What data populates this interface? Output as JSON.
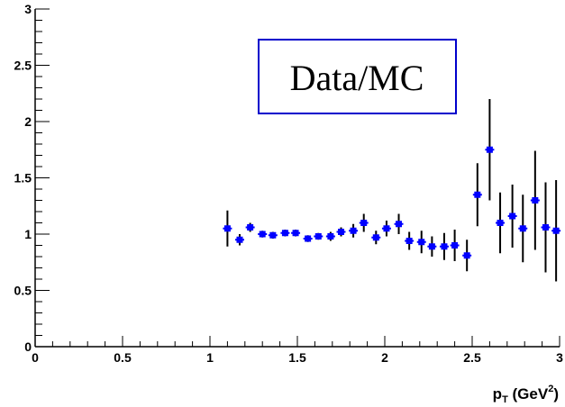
{
  "chart_data": {
    "type": "scatter",
    "title": "",
    "legend_box_text": "Data/MC",
    "xlabel": {
      "main": "p",
      "subscript": "T",
      "rest": " (GeV",
      "superscript": "2",
      "close": ")"
    },
    "ylabel": "",
    "xlim": [
      0,
      3
    ],
    "ylim": [
      0,
      3
    ],
    "x_ticks": [
      {
        "value": 0,
        "label": "0"
      },
      {
        "value": 0.5,
        "label": "0.5"
      },
      {
        "value": 1,
        "label": "1"
      },
      {
        "value": 1.5,
        "label": "1.5"
      },
      {
        "value": 2,
        "label": "2"
      },
      {
        "value": 2.5,
        "label": "2.5"
      },
      {
        "value": 3,
        "label": "3"
      }
    ],
    "y_ticks": [
      {
        "value": 0,
        "label": "0"
      },
      {
        "value": 0.5,
        "label": "0.5"
      },
      {
        "value": 1,
        "label": "1"
      },
      {
        "value": 1.5,
        "label": "1.5"
      },
      {
        "value": 2,
        "label": "2"
      },
      {
        "value": 2.5,
        "label": "2.5"
      },
      {
        "value": 3,
        "label": "3"
      }
    ],
    "grid": false,
    "marker_color": "#0000ff",
    "error_bar_color": "#000000",
    "series": [
      {
        "x": [
          1.1,
          1.17,
          1.23,
          1.3,
          1.36,
          1.43,
          1.49,
          1.56,
          1.62,
          1.69,
          1.75,
          1.82,
          1.88,
          1.95,
          2.01,
          2.08,
          2.14,
          2.21,
          2.27,
          2.34,
          2.4,
          2.47,
          2.53,
          2.6,
          2.66,
          2.73,
          2.79,
          2.86,
          2.92,
          2.98
        ],
        "y": [
          1.05,
          0.95,
          1.06,
          1.0,
          0.99,
          1.01,
          1.01,
          0.96,
          0.98,
          0.98,
          1.02,
          1.03,
          1.1,
          0.97,
          1.05,
          1.09,
          0.94,
          0.93,
          0.89,
          0.89,
          0.9,
          0.81,
          1.35,
          1.75,
          1.1,
          1.16,
          1.05,
          1.3,
          1.06,
          1.03
        ],
        "err": [
          0.16,
          0.05,
          0.04,
          0.03,
          0.03,
          0.03,
          0.03,
          0.03,
          0.03,
          0.04,
          0.04,
          0.06,
          0.08,
          0.06,
          0.07,
          0.09,
          0.08,
          0.1,
          0.09,
          0.12,
          0.14,
          0.14,
          0.28,
          0.45,
          0.27,
          0.28,
          0.3,
          0.44,
          0.4,
          0.45
        ]
      }
    ]
  }
}
